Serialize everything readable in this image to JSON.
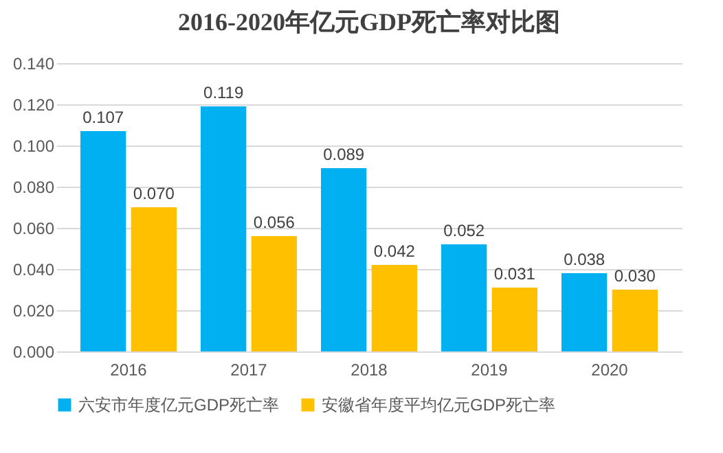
{
  "chart_data": {
    "type": "bar",
    "title": "2016-2020年亿元GDP死亡率对比图",
    "categories": [
      "2016",
      "2017",
      "2018",
      "2019",
      "2020"
    ],
    "series": [
      {
        "name": "六安市年度亿元GDP死亡率",
        "color": "#00b0f0",
        "values": [
          0.107,
          0.119,
          0.089,
          0.052,
          0.038
        ],
        "value_labels": [
          "0.107",
          "0.119",
          "0.089",
          "0.052",
          "0.038"
        ]
      },
      {
        "name": "安徽省年度平均亿元GDP死亡率",
        "color": "#ffc000",
        "values": [
          0.07,
          0.056,
          0.042,
          0.031,
          0.03
        ],
        "value_labels": [
          "0.070",
          "0.056",
          "0.042",
          "0.031",
          "0.030"
        ]
      }
    ],
    "ylim": [
      0,
      0.14
    ],
    "yticks": [
      {
        "value": 0,
        "label": "0.000"
      },
      {
        "value": 0.02,
        "label": "0.020"
      },
      {
        "value": 0.04,
        "label": "0.040"
      },
      {
        "value": 0.06,
        "label": "0.060"
      },
      {
        "value": 0.08,
        "label": "0.080"
      },
      {
        "value": 0.1,
        "label": "0.100"
      },
      {
        "value": 0.12,
        "label": "0.120"
      },
      {
        "value": 0.14,
        "label": "0.140"
      }
    ],
    "grid": "y",
    "legend": "bottom"
  }
}
